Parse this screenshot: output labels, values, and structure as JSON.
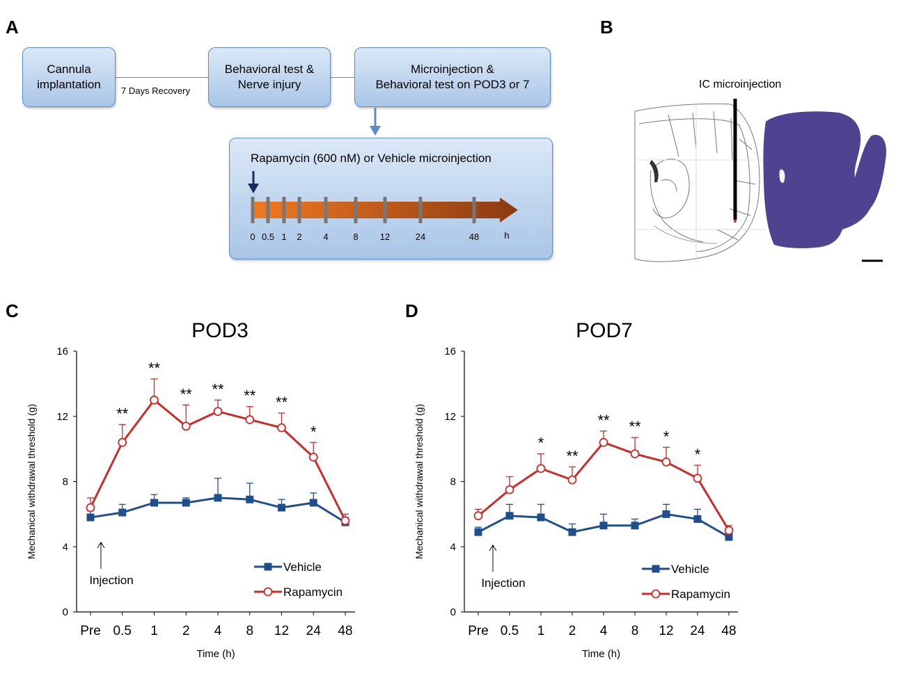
{
  "panels": {
    "a": "A",
    "b": "B",
    "c": "C",
    "d": "D"
  },
  "timeline": {
    "box1": "Cannula\nimplantation",
    "box2": "Behavioral  test &\nNerve  injury",
    "box3": "Microinjection &\nBehavioral  test on POD3 or 7",
    "recovery": "7 Days Recovery",
    "protocol_title": "Rapamycin (600  nM) or Vehicle  microinjection",
    "ticks": [
      "0",
      "0.5",
      "1",
      "2",
      "4",
      "8",
      "12",
      "24",
      "48"
    ],
    "unit": "h"
  },
  "histology": {
    "label": "IC microinjection"
  },
  "colors": {
    "vehicle": "#1f4e8c",
    "rapamycin": "#cc2a27",
    "arrow_start": "#f07a22",
    "arrow_end": "#8a3a12"
  },
  "chart_data": [
    {
      "type": "line",
      "title": "POD3",
      "xlabel": "Time (h)",
      "ylabel": "Mechanical withdrawal threshold (g)",
      "categories": [
        "Pre",
        "0.5",
        "1",
        "2",
        "4",
        "8",
        "12",
        "24",
        "48"
      ],
      "ylim": [
        0,
        16
      ],
      "yticks": [
        0,
        4,
        8,
        12,
        16
      ],
      "annotation": "Injection",
      "series": [
        {
          "name": "Vehicle",
          "values": [
            5.8,
            6.1,
            6.7,
            6.7,
            7.0,
            6.9,
            6.4,
            6.7,
            5.5
          ],
          "errors": [
            0.4,
            0.5,
            0.5,
            0.3,
            1.2,
            1.0,
            0.5,
            0.6,
            0.3
          ]
        },
        {
          "name": "Rapamycin",
          "values": [
            6.4,
            10.4,
            13.0,
            11.4,
            12.3,
            11.8,
            11.3,
            9.5,
            5.6
          ],
          "errors": [
            0.6,
            1.1,
            1.3,
            1.3,
            0.7,
            0.8,
            0.9,
            0.9,
            0.4
          ]
        }
      ],
      "significance": [
        "",
        "**",
        "**",
        "**",
        "**",
        "**",
        "**",
        "*",
        ""
      ]
    },
    {
      "type": "line",
      "title": "POD7",
      "xlabel": "Time (h)",
      "ylabel": "Mechanical withdrawal threshold (g)",
      "categories": [
        "Pre",
        "0.5",
        "1",
        "2",
        "4",
        "8",
        "12",
        "24",
        "48"
      ],
      "ylim": [
        0,
        16
      ],
      "yticks": [
        0,
        4,
        8,
        12,
        16
      ],
      "annotation": "Injection",
      "series": [
        {
          "name": "Vehicle",
          "values": [
            4.9,
            5.9,
            5.8,
            4.9,
            5.3,
            5.3,
            6.0,
            5.7,
            4.6
          ],
          "errors": [
            0.3,
            0.7,
            0.8,
            0.5,
            0.7,
            0.4,
            0.6,
            0.6,
            0.3
          ]
        },
        {
          "name": "Rapamycin",
          "values": [
            5.9,
            7.5,
            8.8,
            8.1,
            10.4,
            9.7,
            9.2,
            8.2,
            5.0
          ],
          "errors": [
            0.4,
            0.8,
            0.9,
            0.8,
            0.7,
            1.0,
            0.9,
            0.8,
            0.3
          ]
        }
      ],
      "significance": [
        "",
        "",
        "*",
        "**",
        "**",
        "**",
        "*",
        "*",
        ""
      ]
    }
  ]
}
